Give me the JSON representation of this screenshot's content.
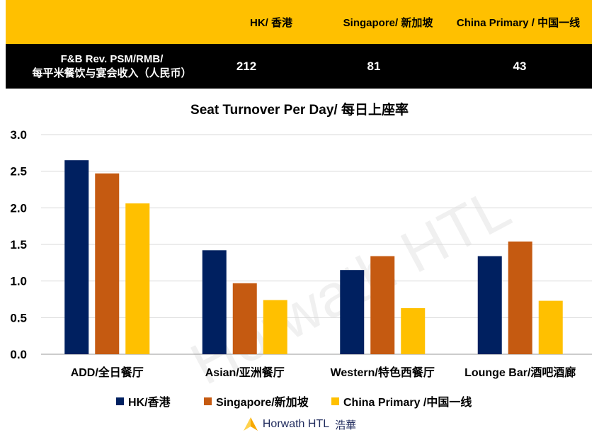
{
  "table": {
    "columns": [
      "HK/ 香港",
      "Singapore/ 新加坡",
      "China Primary / 中国一线"
    ],
    "row_label_line1": "F&B Rev. PSM/RMB/",
    "row_label_line2": "每平米餐饮与宴会收入（人民币）",
    "values": [
      "212",
      "81",
      "43"
    ]
  },
  "watermark": "Horwath HTL",
  "footer": {
    "brand": "Horwath HTL",
    "brand_cn": "浩華"
  },
  "colors": {
    "hk": "#002060",
    "singapore": "#C55A11",
    "china": "#FFC000",
    "header_bg": "#FFC000",
    "row_bg": "#000000"
  },
  "chart_data": {
    "type": "bar",
    "title": "Seat Turnover Per Day/ 每日上座率",
    "categories": [
      "ADD/全日餐厅",
      "Asian/亚洲餐厅",
      "Western/特色西餐厅",
      "Lounge Bar/酒吧酒廊"
    ],
    "series": [
      {
        "name": "HK/香港",
        "color": "#002060",
        "values": [
          2.65,
          1.42,
          1.15,
          1.34
        ]
      },
      {
        "name": "Singapore/新加坡",
        "color": "#C55A11",
        "values": [
          2.47,
          0.97,
          1.34,
          1.54
        ]
      },
      {
        "name": "China Primary /中国一线",
        "color": "#FFC000",
        "values": [
          2.06,
          0.74,
          0.63,
          0.73
        ]
      }
    ],
    "ylim": [
      0,
      3.0
    ],
    "yticks": [
      "0.0",
      "0.5",
      "1.0",
      "1.5",
      "2.0",
      "2.5",
      "3.0"
    ],
    "grid": true,
    "legend_position": "bottom"
  }
}
